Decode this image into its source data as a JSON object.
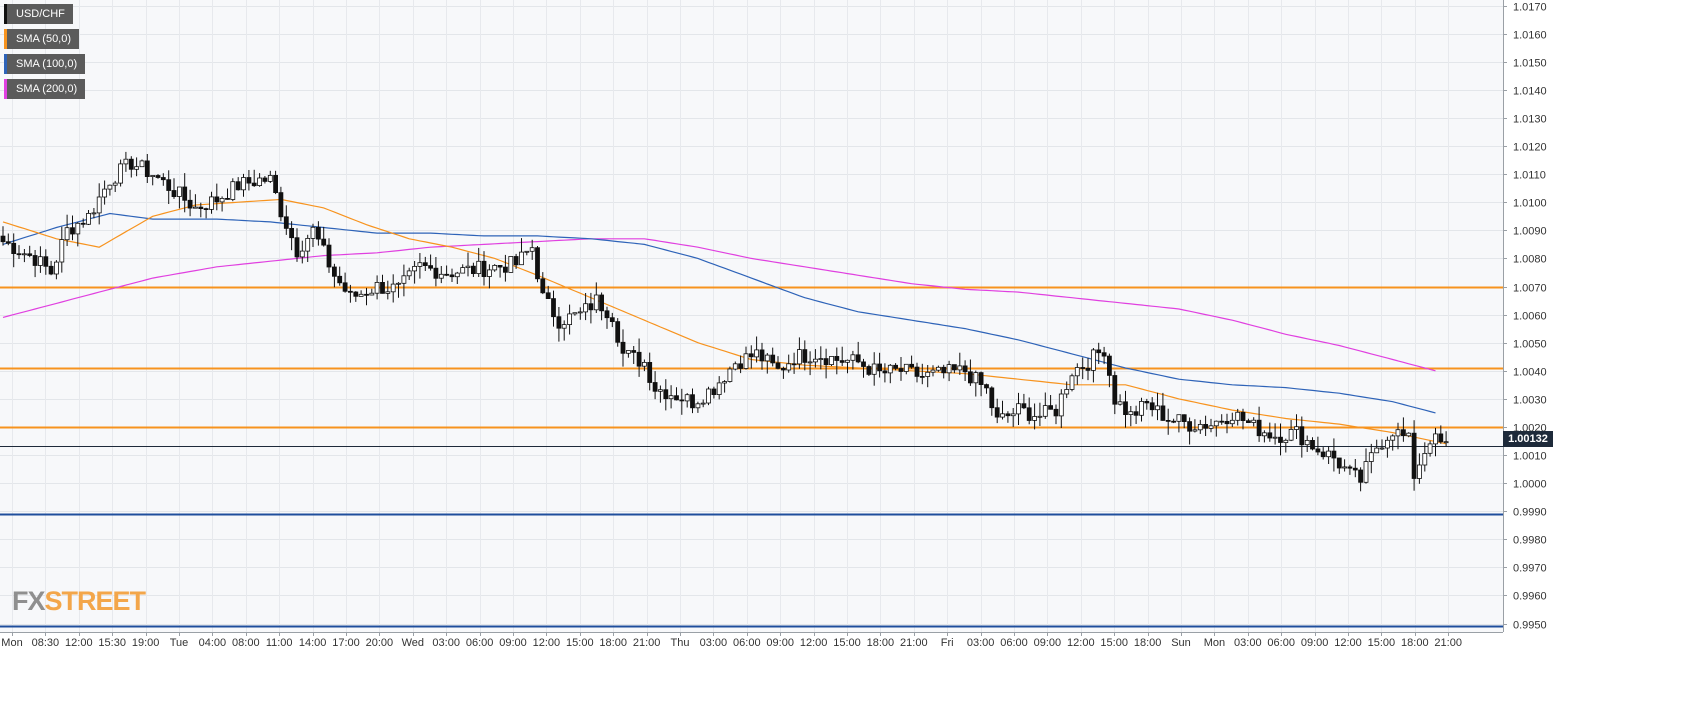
{
  "chart_data": {
    "type": "candlestick",
    "symbol": "USD/CHF",
    "y_ticks": [
      "1.0170",
      "1.0160",
      "1.0150",
      "1.0140",
      "1.0130",
      "1.0120",
      "1.0110",
      "1.0100",
      "1.0090",
      "1.0080",
      "1.0070",
      "1.0060",
      "1.0050",
      "1.0040",
      "1.0030",
      "1.0020",
      "1.0010",
      "1.0000",
      "0.9990",
      "0.9980",
      "0.9970",
      "0.9960",
      "0.9950"
    ],
    "ylim": [
      0.9947,
      1.0172
    ],
    "x_ticks": [
      "Mon",
      "08:30",
      "12:00",
      "15:30",
      "19:00",
      "Tue",
      "04:00",
      "08:00",
      "11:00",
      "14:00",
      "17:00",
      "20:00",
      "Wed",
      "03:00",
      "06:00",
      "09:00",
      "12:00",
      "15:00",
      "18:00",
      "21:00",
      "Thu",
      "03:00",
      "06:00",
      "09:00",
      "12:00",
      "15:00",
      "18:00",
      "21:00",
      "Fri",
      "03:00",
      "06:00",
      "09:00",
      "12:00",
      "15:00",
      "18:00",
      "Sun",
      "Mon",
      "03:00",
      "06:00",
      "09:00",
      "12:00",
      "15:00",
      "18:00",
      "21:00"
    ],
    "current_price": "1.00132",
    "legend": [
      {
        "name": "USD/CHF",
        "color": "#000000"
      },
      {
        "name": "SMA (50,0)",
        "color": "#f7931e"
      },
      {
        "name": "SMA (100,0)",
        "color": "#2e63b8"
      },
      {
        "name": "SMA (200,0)",
        "color": "#e040e0"
      }
    ],
    "horizontal_levels": [
      {
        "value": 1.007,
        "color": "#f7931e"
      },
      {
        "value": 1.0041,
        "color": "#f7931e"
      },
      {
        "value": 1.002,
        "color": "#f7931e"
      },
      {
        "value": 0.9989,
        "color": "#1f4e9c"
      },
      {
        "value": 0.9949,
        "color": "#1f4e9c"
      }
    ],
    "price_anchors": [
      [
        0,
        1.0086
      ],
      [
        6,
        1.008
      ],
      [
        9,
        1.0075
      ],
      [
        12,
        1.009
      ],
      [
        16,
        1.0095
      ],
      [
        20,
        1.0108
      ],
      [
        24,
        1.0114
      ],
      [
        28,
        1.011
      ],
      [
        32,
        1.0104
      ],
      [
        36,
        1.0098
      ],
      [
        40,
        1.0101
      ],
      [
        44,
        1.0106
      ],
      [
        48,
        1.0108
      ],
      [
        50,
        1.0108
      ],
      [
        52,
        1.0097
      ],
      [
        55,
        1.0083
      ],
      [
        58,
        1.009
      ],
      [
        62,
        1.0074
      ],
      [
        65,
        1.0066
      ],
      [
        70,
        1.007
      ],
      [
        74,
        1.0069
      ],
      [
        78,
        1.0077
      ],
      [
        83,
        1.0075
      ],
      [
        88,
        1.0076
      ],
      [
        92,
        1.0077
      ],
      [
        96,
        1.0078
      ],
      [
        99,
        1.0084
      ],
      [
        101,
        1.0066
      ],
      [
        104,
        1.0058
      ],
      [
        108,
        1.006
      ],
      [
        111,
        1.0065
      ],
      [
        114,
        1.006
      ],
      [
        116,
        1.0046
      ],
      [
        120,
        1.0043
      ],
      [
        122,
        1.0034
      ],
      [
        125,
        1.0032
      ],
      [
        129,
        1.0029
      ],
      [
        133,
        1.0034
      ],
      [
        137,
        1.0043
      ],
      [
        141,
        1.0046
      ],
      [
        145,
        1.004
      ],
      [
        148,
        1.0045
      ],
      [
        152,
        1.0046
      ],
      [
        156,
        1.0044
      ],
      [
        160,
        1.0043
      ],
      [
        164,
        1.0039
      ],
      [
        168,
        1.004
      ],
      [
        172,
        1.0038
      ],
      [
        176,
        1.0039
      ],
      [
        180,
        1.004
      ],
      [
        184,
        1.0033
      ],
      [
        186,
        1.0022
      ],
      [
        190,
        1.0026
      ],
      [
        194,
        1.0024
      ],
      [
        197,
        1.0026
      ],
      [
        200,
        1.004
      ],
      [
        203,
        1.0043
      ],
      [
        206,
        1.0048
      ],
      [
        208,
        1.003
      ],
      [
        211,
        1.0024
      ],
      [
        214,
        1.0028
      ],
      [
        218,
        1.0023
      ],
      [
        222,
        1.0021
      ],
      [
        226,
        1.0021
      ],
      [
        230,
        1.0025
      ],
      [
        234,
        1.002
      ],
      [
        238,
        1.0017
      ],
      [
        242,
        1.0018
      ],
      [
        246,
        1.0012
      ],
      [
        249,
        1.0009
      ],
      [
        252,
        1.0003
      ],
      [
        254,
        1.0001
      ],
      [
        257,
        1.0013
      ],
      [
        260,
        1.0019
      ],
      [
        263,
        1.0015
      ],
      [
        264,
        1.0003
      ],
      [
        267,
        1.0016
      ],
      [
        270,
        1.0013
      ]
    ],
    "sma50": [
      [
        0,
        1.0093
      ],
      [
        10,
        1.0087
      ],
      [
        18,
        1.0084
      ],
      [
        28,
        1.0095
      ],
      [
        36,
        1.0099
      ],
      [
        44,
        1.01
      ],
      [
        52,
        1.0101
      ],
      [
        60,
        1.0098
      ],
      [
        68,
        1.0092
      ],
      [
        76,
        1.0087
      ],
      [
        84,
        1.0084
      ],
      [
        92,
        1.008
      ],
      [
        100,
        1.0074
      ],
      [
        110,
        1.0066
      ],
      [
        120,
        1.0058
      ],
      [
        130,
        1.005
      ],
      [
        140,
        1.0044
      ],
      [
        150,
        1.0042
      ],
      [
        160,
        1.0041
      ],
      [
        170,
        1.004
      ],
      [
        180,
        1.0039
      ],
      [
        190,
        1.0037
      ],
      [
        200,
        1.0035
      ],
      [
        210,
        1.0035
      ],
      [
        220,
        1.003
      ],
      [
        230,
        1.0026
      ],
      [
        240,
        1.0023
      ],
      [
        250,
        1.0021
      ],
      [
        260,
        1.0018
      ],
      [
        270,
        1.0014
      ]
    ],
    "sma100": [
      [
        0,
        1.0085
      ],
      [
        10,
        1.0091
      ],
      [
        20,
        1.0096
      ],
      [
        28,
        1.0094
      ],
      [
        40,
        1.0094
      ],
      [
        50,
        1.0093
      ],
      [
        60,
        1.0091
      ],
      [
        70,
        1.0089
      ],
      [
        80,
        1.0089
      ],
      [
        90,
        1.0088
      ],
      [
        100,
        1.0088
      ],
      [
        110,
        1.0087
      ],
      [
        120,
        1.0085
      ],
      [
        130,
        1.008
      ],
      [
        140,
        1.0073
      ],
      [
        150,
        1.0066
      ],
      [
        160,
        1.0061
      ],
      [
        170,
        1.0058
      ],
      [
        180,
        1.0055
      ],
      [
        190,
        1.0051
      ],
      [
        200,
        1.0046
      ],
      [
        210,
        1.0041
      ],
      [
        220,
        1.0037
      ],
      [
        230,
        1.0035
      ],
      [
        240,
        1.0034
      ],
      [
        250,
        1.0032
      ],
      [
        260,
        1.0029
      ],
      [
        268,
        1.0025
      ]
    ],
    "sma200": [
      [
        0,
        1.0059
      ],
      [
        10,
        1.0064
      ],
      [
        20,
        1.0069
      ],
      [
        28,
        1.0073
      ],
      [
        40,
        1.0077
      ],
      [
        50,
        1.0079
      ],
      [
        60,
        1.0081
      ],
      [
        70,
        1.0082
      ],
      [
        80,
        1.0084
      ],
      [
        90,
        1.0085
      ],
      [
        100,
        1.0086
      ],
      [
        110,
        1.0087
      ],
      [
        120,
        1.0087
      ],
      [
        130,
        1.0084
      ],
      [
        140,
        1.008
      ],
      [
        150,
        1.0077
      ],
      [
        160,
        1.0074
      ],
      [
        170,
        1.0071
      ],
      [
        180,
        1.0069
      ],
      [
        190,
        1.0068
      ],
      [
        200,
        1.0066
      ],
      [
        210,
        1.0064
      ],
      [
        220,
        1.0062
      ],
      [
        230,
        1.0058
      ],
      [
        240,
        1.0053
      ],
      [
        250,
        1.0049
      ],
      [
        260,
        1.0044
      ],
      [
        268,
        1.004
      ]
    ]
  },
  "logo": {
    "fx": "FX",
    "street": "STREET"
  }
}
